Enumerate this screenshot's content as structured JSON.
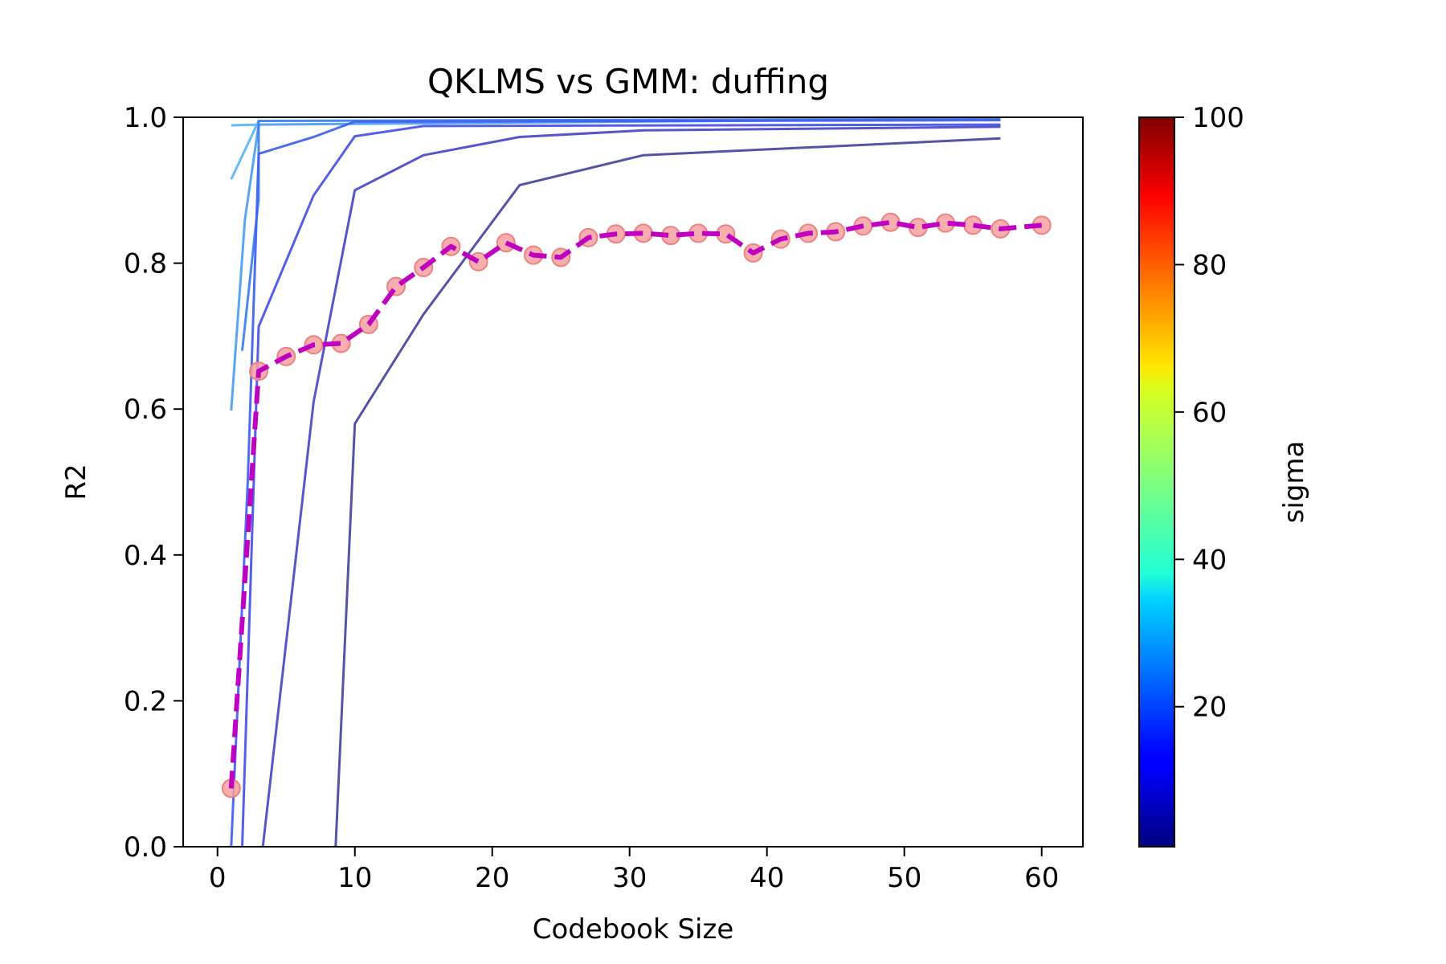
{
  "chart_data": {
    "type": "line",
    "title": "QKLMS vs GMM: duffing",
    "xlabel": "Codebook Size",
    "ylabel": "R2",
    "xlim": [
      -2.5,
      63
    ],
    "ylim": [
      0,
      1
    ],
    "xticks": [
      "0",
      "10",
      "20",
      "30",
      "40",
      "50",
      "60"
    ],
    "xtick_values": [
      0,
      10,
      20,
      30,
      40,
      50,
      60
    ],
    "yticks": [
      "0.0",
      "0.2",
      "0.4",
      "0.6",
      "0.8",
      "1.0"
    ],
    "ytick_values": [
      0,
      0.2,
      0.4,
      0.6,
      0.8,
      1.0
    ],
    "grid": false,
    "colorbar": {
      "label": "sigma",
      "colormap": "jet",
      "range": [
        1,
        100
      ],
      "ticks": [
        "20",
        "40",
        "60",
        "80",
        "100"
      ],
      "tick_values": [
        20,
        40,
        60,
        80,
        100
      ]
    },
    "qklms_series": [
      {
        "sigma": 30,
        "color": "#5ab4f5",
        "points": [
          [
            1,
            0.915
          ],
          [
            3,
            0.995
          ],
          [
            3,
            0.99
          ],
          [
            1,
            0.989
          ]
        ]
      },
      {
        "sigma": 26,
        "color": "#4a9ef2",
        "points": [
          [
            1,
            0.598
          ],
          [
            2,
            0.86
          ],
          [
            3,
            0.99
          ],
          [
            57,
            0.998
          ]
        ]
      },
      {
        "sigma": 22,
        "color": "#3d7ef0",
        "points": [
          [
            1.8,
            0.68
          ],
          [
            3,
            0.888
          ],
          [
            3,
            0.995
          ],
          [
            57,
            0.998
          ]
        ]
      },
      {
        "sigma": 18,
        "color": "#3f5ff0",
        "points": [
          [
            1,
            0.0
          ],
          [
            2.2,
            0.5
          ],
          [
            3,
            0.95
          ],
          [
            7,
            0.973
          ],
          [
            10,
            0.994
          ],
          [
            57,
            0.996
          ]
        ]
      },
      {
        "sigma": 15,
        "color": "#4550e4",
        "points": [
          [
            1.8,
            0.0
          ],
          [
            3,
            0.713
          ],
          [
            7,
            0.893
          ],
          [
            10,
            0.974
          ],
          [
            15,
            0.988
          ],
          [
            57,
            0.99
          ]
        ]
      },
      {
        "sigma": 12,
        "color": "#4646c8",
        "points": [
          [
            3.3,
            0.0
          ],
          [
            7,
            0.61
          ],
          [
            10,
            0.9
          ],
          [
            15,
            0.948
          ],
          [
            22,
            0.973
          ],
          [
            31,
            0.982
          ],
          [
            57,
            0.987
          ]
        ]
      },
      {
        "sigma": 9,
        "color": "#45449e",
        "points": [
          [
            8.6,
            0.0
          ],
          [
            10,
            0.58
          ],
          [
            15,
            0.73
          ],
          [
            22,
            0.907
          ],
          [
            31,
            0.948
          ],
          [
            57,
            0.971
          ]
        ]
      }
    ],
    "gmm_series": {
      "line_color": "#c000c0",
      "marker_color": "#f4a0a0",
      "x": [
        1,
        3,
        5,
        7,
        9,
        11,
        13,
        15,
        17,
        19,
        21,
        23,
        25,
        27,
        29,
        31,
        33,
        35,
        37,
        39,
        41,
        43,
        45,
        47,
        49,
        51,
        53,
        55,
        57,
        60
      ],
      "y": [
        0.08,
        0.652,
        0.672,
        0.688,
        0.69,
        0.716,
        0.768,
        0.794,
        0.823,
        0.802,
        0.828,
        0.811,
        0.808,
        0.835,
        0.84,
        0.841,
        0.838,
        0.841,
        0.84,
        0.814,
        0.833,
        0.841,
        0.843,
        0.851,
        0.856,
        0.849,
        0.855,
        0.852,
        0.847,
        0.852
      ]
    }
  }
}
